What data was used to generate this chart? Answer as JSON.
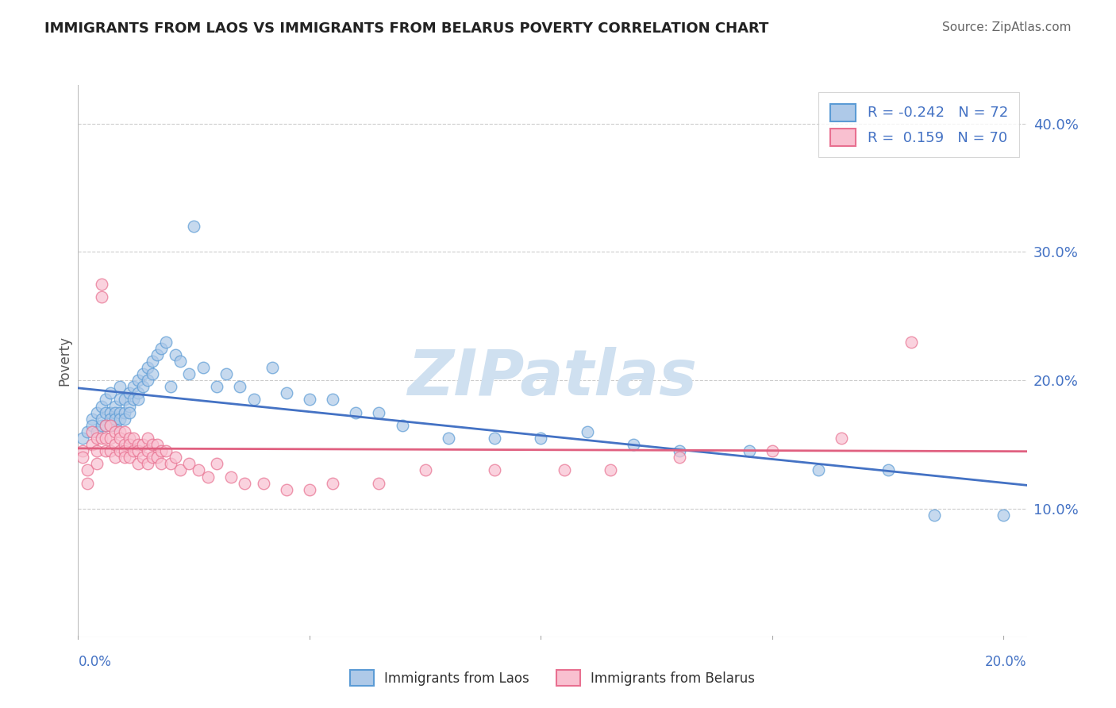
{
  "title": "IMMIGRANTS FROM LAOS VS IMMIGRANTS FROM BELARUS POVERTY CORRELATION CHART",
  "source": "Source: ZipAtlas.com",
  "ylabel": "Poverty",
  "xlim": [
    0.0,
    0.205
  ],
  "ylim": [
    0.0,
    0.43
  ],
  "ytick_values": [
    0.1,
    0.2,
    0.3,
    0.4
  ],
  "legend_r_laos": "-0.242",
  "legend_n_laos": "72",
  "legend_r_belarus": " 0.159",
  "legend_n_belarus": "70",
  "laos_fill_color": "#aec9e8",
  "laos_edge_color": "#5b9bd5",
  "belarus_fill_color": "#f9c0d0",
  "belarus_edge_color": "#e87090",
  "laos_line_color": "#4472c4",
  "belarus_line_color": "#e06080",
  "background_color": "#ffffff",
  "grid_color": "#cccccc",
  "text_color_blue": "#4472c4",
  "watermark_color": "#cfe0f0",
  "laos_scatter_x": [
    0.001,
    0.002,
    0.003,
    0.003,
    0.004,
    0.004,
    0.005,
    0.005,
    0.005,
    0.006,
    0.006,
    0.006,
    0.007,
    0.007,
    0.007,
    0.007,
    0.008,
    0.008,
    0.008,
    0.008,
    0.009,
    0.009,
    0.009,
    0.009,
    0.01,
    0.01,
    0.01,
    0.011,
    0.011,
    0.011,
    0.012,
    0.012,
    0.013,
    0.013,
    0.013,
    0.014,
    0.014,
    0.015,
    0.015,
    0.016,
    0.016,
    0.017,
    0.018,
    0.019,
    0.02,
    0.021,
    0.022,
    0.024,
    0.025,
    0.027,
    0.03,
    0.032,
    0.035,
    0.038,
    0.042,
    0.045,
    0.05,
    0.055,
    0.06,
    0.065,
    0.07,
    0.08,
    0.09,
    0.1,
    0.11,
    0.12,
    0.13,
    0.145,
    0.16,
    0.175,
    0.185,
    0.2
  ],
  "laos_scatter_y": [
    0.155,
    0.16,
    0.17,
    0.165,
    0.175,
    0.16,
    0.18,
    0.165,
    0.17,
    0.185,
    0.175,
    0.165,
    0.19,
    0.175,
    0.17,
    0.165,
    0.18,
    0.175,
    0.165,
    0.17,
    0.195,
    0.185,
    0.175,
    0.17,
    0.185,
    0.175,
    0.17,
    0.19,
    0.18,
    0.175,
    0.195,
    0.185,
    0.2,
    0.19,
    0.185,
    0.205,
    0.195,
    0.21,
    0.2,
    0.215,
    0.205,
    0.22,
    0.225,
    0.23,
    0.195,
    0.22,
    0.215,
    0.205,
    0.32,
    0.21,
    0.195,
    0.205,
    0.195,
    0.185,
    0.21,
    0.19,
    0.185,
    0.185,
    0.175,
    0.175,
    0.165,
    0.155,
    0.155,
    0.155,
    0.16,
    0.15,
    0.145,
    0.145,
    0.13,
    0.13,
    0.095,
    0.095
  ],
  "belarus_scatter_x": [
    0.001,
    0.001,
    0.002,
    0.002,
    0.003,
    0.003,
    0.004,
    0.004,
    0.004,
    0.005,
    0.005,
    0.005,
    0.006,
    0.006,
    0.006,
    0.007,
    0.007,
    0.007,
    0.008,
    0.008,
    0.008,
    0.009,
    0.009,
    0.009,
    0.01,
    0.01,
    0.01,
    0.01,
    0.011,
    0.011,
    0.011,
    0.012,
    0.012,
    0.013,
    0.013,
    0.013,
    0.014,
    0.014,
    0.015,
    0.015,
    0.015,
    0.016,
    0.016,
    0.017,
    0.017,
    0.018,
    0.018,
    0.019,
    0.02,
    0.021,
    0.022,
    0.024,
    0.026,
    0.028,
    0.03,
    0.033,
    0.036,
    0.04,
    0.045,
    0.05,
    0.055,
    0.065,
    0.075,
    0.09,
    0.105,
    0.115,
    0.13,
    0.15,
    0.165,
    0.18
  ],
  "belarus_scatter_y": [
    0.145,
    0.14,
    0.13,
    0.12,
    0.16,
    0.15,
    0.155,
    0.145,
    0.135,
    0.275,
    0.265,
    0.155,
    0.165,
    0.155,
    0.145,
    0.165,
    0.155,
    0.145,
    0.16,
    0.15,
    0.14,
    0.16,
    0.155,
    0.145,
    0.16,
    0.15,
    0.145,
    0.14,
    0.155,
    0.15,
    0.14,
    0.155,
    0.145,
    0.15,
    0.145,
    0.135,
    0.15,
    0.14,
    0.155,
    0.145,
    0.135,
    0.15,
    0.14,
    0.15,
    0.14,
    0.145,
    0.135,
    0.145,
    0.135,
    0.14,
    0.13,
    0.135,
    0.13,
    0.125,
    0.135,
    0.125,
    0.12,
    0.12,
    0.115,
    0.115,
    0.12,
    0.12,
    0.13,
    0.13,
    0.13,
    0.13,
    0.14,
    0.145,
    0.155,
    0.23
  ]
}
